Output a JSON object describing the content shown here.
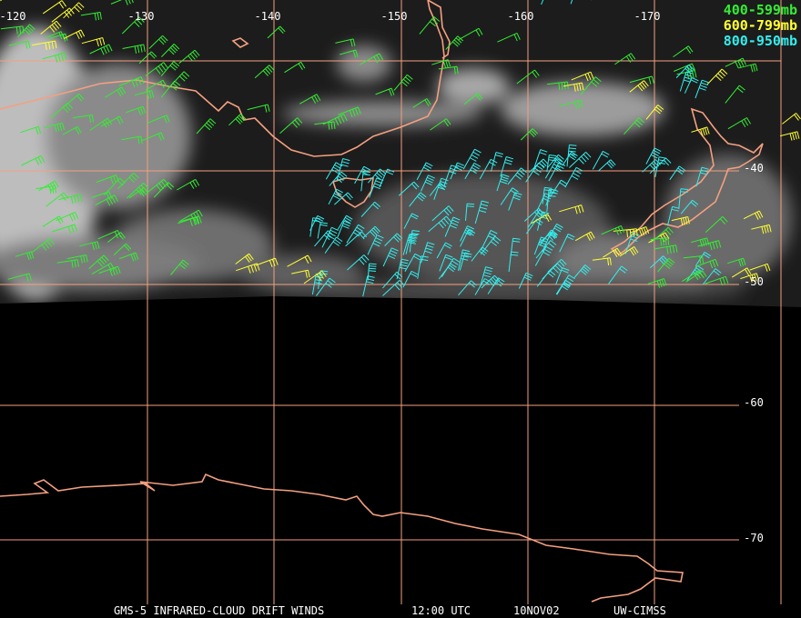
{
  "longitude_labels": [
    "-120",
    "-130",
    "-140",
    "-150",
    "-160",
    "-170"
  ],
  "latitude_labels": [
    "-40",
    "-50",
    "-60",
    "-70"
  ],
  "legend": [
    "400-599mb",
    "600-799mb",
    "800-950mb"
  ],
  "footer": [
    "GMS-5 INFRARED-CLOUD DRIFT WINDS",
    "12:00 UTC",
    "10NOV02",
    "UW-CIMSS"
  ]
}
